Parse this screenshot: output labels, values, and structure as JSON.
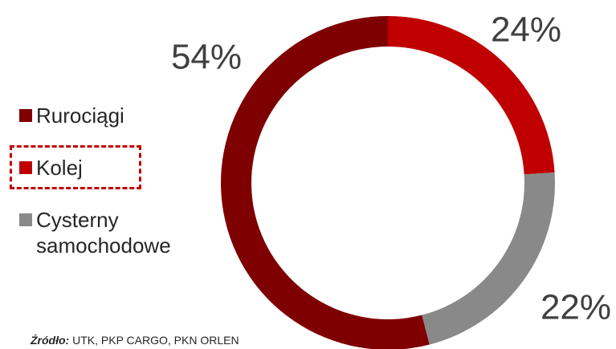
{
  "chart_data": {
    "type": "pie",
    "categories": [
      "Kolej",
      "Cysterny samochodowe",
      "Rurociągi"
    ],
    "values": [
      24,
      22,
      54
    ],
    "value_labels": [
      "24%",
      "22%",
      "54%"
    ],
    "colors": [
      "#c00000",
      "#898989",
      "#7f0000"
    ],
    "legend_order": [
      2,
      0,
      1
    ],
    "source_label": "Źródło:",
    "source": "UTK, PKP CARGO, PKN ORLEN"
  }
}
